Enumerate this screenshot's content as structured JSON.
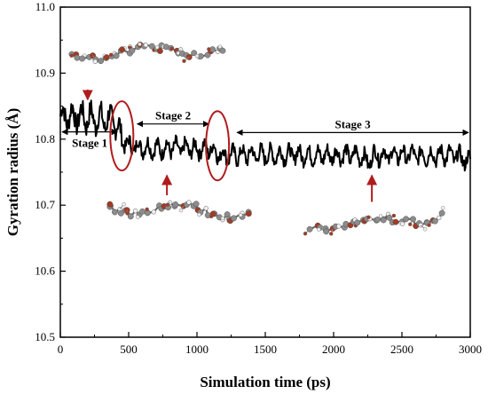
{
  "chart_data": {
    "type": "line",
    "xlabel": "Simulation time (ps)",
    "ylabel": "Gyration radius (Å)",
    "xlim": [
      0,
      3000
    ],
    "ylim": [
      10.5,
      11.0
    ],
    "x_ticks": [
      "0",
      "500",
      "1000",
      "1500",
      "2000",
      "2500",
      "3000"
    ],
    "y_ticks": [
      "10.5",
      "10.6",
      "10.7",
      "10.8",
      "10.9",
      "11.0"
    ],
    "grid": false,
    "legend": "none",
    "series": [
      {
        "color": "#000000",
        "x": [
          0,
          100,
          200,
          300,
          400,
          450,
          500,
          600,
          700,
          800,
          900,
          1000,
          1100,
          1150,
          1200,
          1300,
          1400,
          1500,
          1600,
          1700,
          1800,
          1900,
          2000,
          2100,
          2200,
          2250,
          2300,
          2400,
          2500,
          2600,
          2700,
          2800,
          2900,
          3000
        ],
        "y": [
          10.835,
          10.835,
          10.832,
          10.83,
          10.828,
          10.8,
          10.79,
          10.788,
          10.785,
          10.787,
          10.786,
          10.785,
          10.786,
          10.778,
          10.775,
          10.776,
          10.777,
          10.776,
          10.776,
          10.777,
          10.776,
          10.775,
          10.776,
          10.776,
          10.775,
          10.765,
          10.776,
          10.776,
          10.776,
          10.776,
          10.775,
          10.776,
          10.775,
          10.765
        ]
      }
    ],
    "annotations": {
      "stages": [
        {
          "label": "Stage 1",
          "x_start": 0,
          "x_end": 430,
          "y": 10.811
        },
        {
          "label": "Stage 2",
          "x_start": 550,
          "x_end": 1100,
          "y": 10.823
        },
        {
          "label": "Stage 3",
          "x_start": 1280,
          "x_end": 3000,
          "y": 10.81
        }
      ],
      "ellipses": [
        {
          "x_center": 450,
          "y_center": 10.805,
          "color": "#b01c1c"
        },
        {
          "x_center": 1150,
          "y_center": 10.79,
          "color": "#b01c1c"
        }
      ],
      "arrows": [
        {
          "x": 200,
          "y_from": 10.875,
          "y_to": 10.86,
          "color": "#b01c1c"
        },
        {
          "x": 780,
          "y_from": 10.715,
          "y_to": 10.745,
          "color": "#b01c1c"
        },
        {
          "x": 2280,
          "y_from": 10.705,
          "y_to": 10.745,
          "color": "#b01c1c"
        }
      ]
    }
  },
  "molecule_images": {
    "atom_colors": {
      "carbon": "#8c8c8c",
      "oxygen": "#a33a22",
      "hydrogen": "#f2f2f2"
    }
  }
}
